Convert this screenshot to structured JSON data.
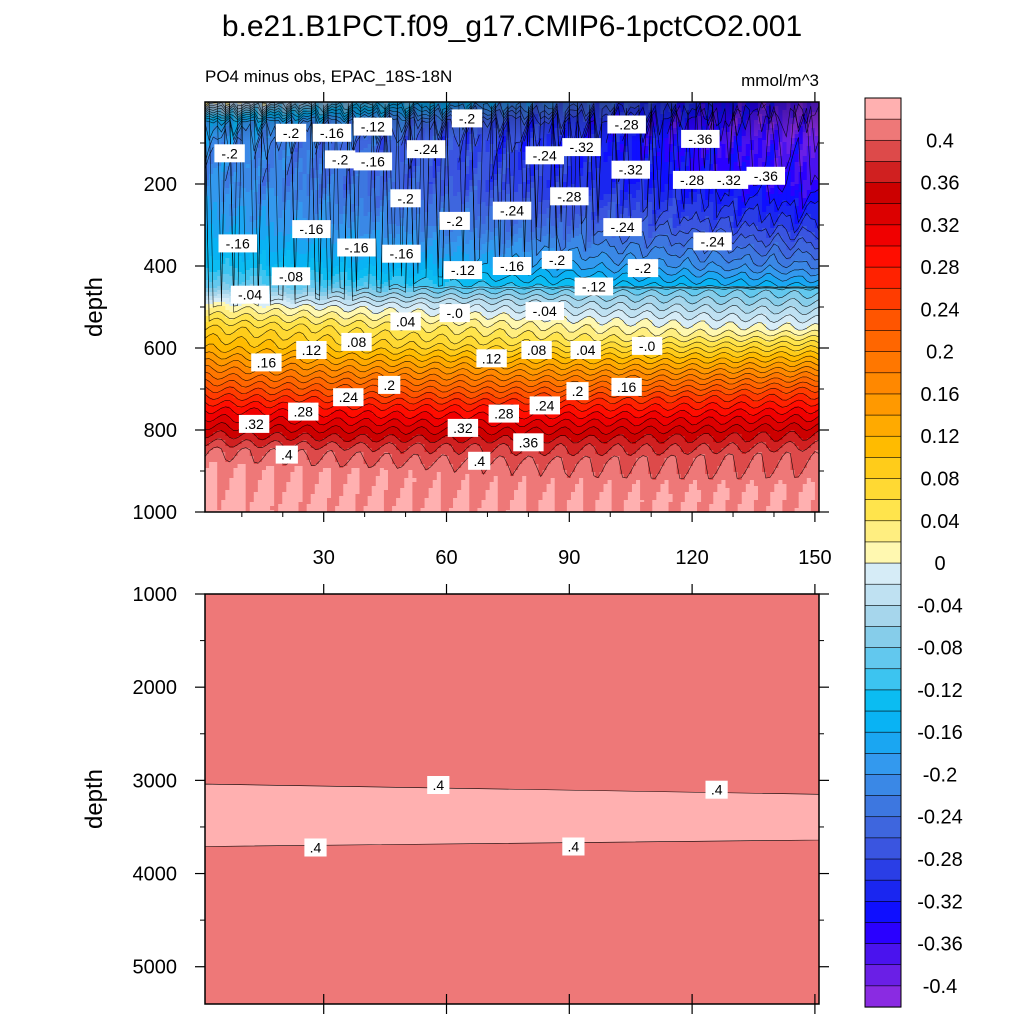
{
  "title": "b.e21.B1PCT.f09_g17.CMIP6-1pctCO2.001",
  "subtitle_left": "PO4 minus obs, EPAC_18S-18N",
  "subtitle_right": "mmol/m^3",
  "chart_data": [
    {
      "type": "heatmap",
      "panel": "upper",
      "ylabel": "depth",
      "xlabel": "",
      "xlim": [
        1,
        151
      ],
      "ylim": [
        0,
        1000
      ],
      "y_reversed": true,
      "x_ticks": [
        30,
        60,
        90,
        120,
        150
      ],
      "x_tick_labels": [
        "30",
        "60",
        "90",
        "120",
        "150"
      ],
      "y_ticks": [
        200,
        400,
        600,
        800,
        1000
      ],
      "y_tick_labels": [
        "200",
        "400",
        "600",
        "800",
        "1000"
      ],
      "depth_profile": {
        "depth": [
          0,
          50,
          100,
          200,
          300,
          400,
          450,
          500,
          550,
          600,
          650,
          700,
          750,
          800,
          850,
          900,
          1000
        ],
        "value_x1": [
          0.02,
          -0.16,
          -0.2,
          -0.2,
          -0.17,
          -0.12,
          -0.08,
          0.02,
          0.08,
          0.12,
          0.18,
          0.24,
          0.3,
          0.35,
          0.4,
          0.42,
          0.43
        ],
        "value_x151": [
          -0.4,
          -0.4,
          -0.38,
          -0.36,
          -0.3,
          -0.22,
          -0.16,
          -0.1,
          -0.05,
          0.0,
          0.08,
          0.16,
          0.24,
          0.3,
          0.35,
          0.39,
          0.42
        ]
      },
      "contour_labels": [
        {
          "text": "-.2",
          "x": 7,
          "y": 125
        },
        {
          "text": "-.2",
          "x": 22,
          "y": 75
        },
        {
          "text": "-.16",
          "x": 32,
          "y": 75
        },
        {
          "text": "-.2",
          "x": 34,
          "y": 140
        },
        {
          "text": "-.12",
          "x": 42,
          "y": 60
        },
        {
          "text": "-.16",
          "x": 42,
          "y": 145
        },
        {
          "text": "-.24",
          "x": 55,
          "y": 115
        },
        {
          "text": "-.2",
          "x": 65,
          "y": 40
        },
        {
          "text": "-.24",
          "x": 84,
          "y": 130
        },
        {
          "text": "-.32",
          "x": 93,
          "y": 110
        },
        {
          "text": "-.28",
          "x": 104,
          "y": 55
        },
        {
          "text": "-.36",
          "x": 122,
          "y": 90
        },
        {
          "text": "-.32",
          "x": 105,
          "y": 165
        },
        {
          "text": "-.28",
          "x": 120,
          "y": 190
        },
        {
          "text": "-.32",
          "x": 129,
          "y": 190
        },
        {
          "text": "-.36",
          "x": 138,
          "y": 180
        },
        {
          "text": "-.2",
          "x": 50,
          "y": 235
        },
        {
          "text": "-.28",
          "x": 90,
          "y": 230
        },
        {
          "text": "-.16",
          "x": 9,
          "y": 345
        },
        {
          "text": "-.16",
          "x": 27,
          "y": 310
        },
        {
          "text": "-.16",
          "x": 38,
          "y": 355
        },
        {
          "text": "-.16",
          "x": 49,
          "y": 370
        },
        {
          "text": "-.2",
          "x": 62,
          "y": 290
        },
        {
          "text": "-.24",
          "x": 76,
          "y": 265
        },
        {
          "text": "-.24",
          "x": 103,
          "y": 305
        },
        {
          "text": "-.24",
          "x": 125,
          "y": 340
        },
        {
          "text": "-.2",
          "x": 87,
          "y": 385
        },
        {
          "text": "-.12",
          "x": 64,
          "y": 410
        },
        {
          "text": "-.16",
          "x": 76,
          "y": 400
        },
        {
          "text": "-.2",
          "x": 108,
          "y": 405
        },
        {
          "text": "-.12",
          "x": 96,
          "y": 450
        },
        {
          "text": "-.08",
          "x": 22,
          "y": 425
        },
        {
          "text": "-.04",
          "x": 12,
          "y": 470
        },
        {
          "text": "-.04",
          "x": 84,
          "y": 510
        },
        {
          "text": "-.0",
          "x": 62,
          "y": 515
        },
        {
          "text": ".04",
          "x": 50,
          "y": 535
        },
        {
          "text": ".08",
          "x": 38,
          "y": 585
        },
        {
          "text": ".12",
          "x": 27,
          "y": 605
        },
        {
          "text": ".16",
          "x": 16,
          "y": 635
        },
        {
          "text": ".12",
          "x": 71,
          "y": 625
        },
        {
          "text": ".08",
          "x": 82,
          "y": 605
        },
        {
          "text": ".04",
          "x": 94,
          "y": 605
        },
        {
          "text": "-.0",
          "x": 109,
          "y": 595
        },
        {
          "text": ".24",
          "x": 36,
          "y": 720
        },
        {
          "text": ".2",
          "x": 46,
          "y": 690
        },
        {
          "text": ".28",
          "x": 25,
          "y": 755
        },
        {
          "text": ".32",
          "x": 13,
          "y": 785
        },
        {
          "text": ".2",
          "x": 92,
          "y": 705
        },
        {
          "text": ".16",
          "x": 104,
          "y": 695
        },
        {
          "text": ".24",
          "x": 84,
          "y": 740
        },
        {
          "text": ".28",
          "x": 74,
          "y": 760
        },
        {
          "text": ".32",
          "x": 64,
          "y": 795
        },
        {
          "text": ".36",
          "x": 80,
          "y": 830
        },
        {
          "text": ".4",
          "x": 21,
          "y": 860
        },
        {
          "text": ".4",
          "x": 68,
          "y": 875
        }
      ]
    },
    {
      "type": "heatmap",
      "panel": "lower",
      "ylabel": "depth",
      "xlabel": "",
      "xlim": [
        1,
        151
      ],
      "ylim": [
        1000,
        5400
      ],
      "y_reversed": true,
      "y_ticks": [
        1000,
        2000,
        3000,
        4000,
        5000
      ],
      "y_tick_labels": [
        "1000",
        "2000",
        "3000",
        "4000",
        "5000"
      ],
      "background_level": 0.4,
      "band": {
        "level": 0.44,
        "top_left": 3040,
        "top_right": 3150,
        "bottom_left": 3710,
        "bottom_right": 3640
      },
      "contour_labels": [
        {
          "text": ".4",
          "x": 58,
          "y": 3050
        },
        {
          "text": ".4",
          "x": 126,
          "y": 3100
        },
        {
          "text": ".4",
          "x": 28,
          "y": 3720
        },
        {
          "text": ".4",
          "x": 91,
          "y": 3710
        }
      ]
    }
  ],
  "colorbar": {
    "units": "mmol/m^3",
    "levels": [
      -0.42,
      -0.4,
      -0.38,
      -0.36,
      -0.34,
      -0.32,
      -0.3,
      -0.28,
      -0.26,
      -0.24,
      -0.22,
      -0.2,
      -0.18,
      -0.16,
      -0.14,
      -0.12,
      -0.1,
      -0.08,
      -0.06,
      -0.04,
      -0.02,
      0.0,
      0.02,
      0.04,
      0.06,
      0.08,
      0.1,
      0.12,
      0.14,
      0.16,
      0.18,
      0.2,
      0.22,
      0.24,
      0.26,
      0.28,
      0.3,
      0.32,
      0.34,
      0.36,
      0.38,
      0.4,
      0.42
    ],
    "colors": [
      "#8a2be2",
      "#6a1fe6",
      "#4a13ee",
      "#2a00ff",
      "#0f0fff",
      "#1a26f0",
      "#2a3ee6",
      "#3a55e0",
      "#3e66de",
      "#3d77e0",
      "#3a88e6",
      "#3399ee",
      "#1aa6f2",
      "#09b3f4",
      "#0bbcf2",
      "#3cc4f0",
      "#62c8ee",
      "#86cdea",
      "#a6d6ec",
      "#bfe1f2",
      "#d6ecf7",
      "#fff8b0",
      "#ffee80",
      "#ffe44c",
      "#ffd933",
      "#ffcc1a",
      "#ffbb00",
      "#ffaa00",
      "#ff9900",
      "#ff8800",
      "#ff7700",
      "#ff6600",
      "#ff5500",
      "#ff3c00",
      "#ff2200",
      "#ff0d00",
      "#f00000",
      "#dc0000",
      "#cc0000",
      "#d02020",
      "#dd4a4a",
      "#ee7878",
      "#ffb0b0"
    ],
    "tick_labels": [
      "-0.4",
      "-0.36",
      "-0.32",
      "-0.28",
      "-0.24",
      "-0.2",
      "-0.16",
      "-0.12",
      "-0.08",
      "-0.04",
      "0",
      "0.04",
      "0.08",
      "0.12",
      "0.16",
      "0.2",
      "0.24",
      "0.28",
      "0.32",
      "0.36",
      "0.4"
    ]
  }
}
